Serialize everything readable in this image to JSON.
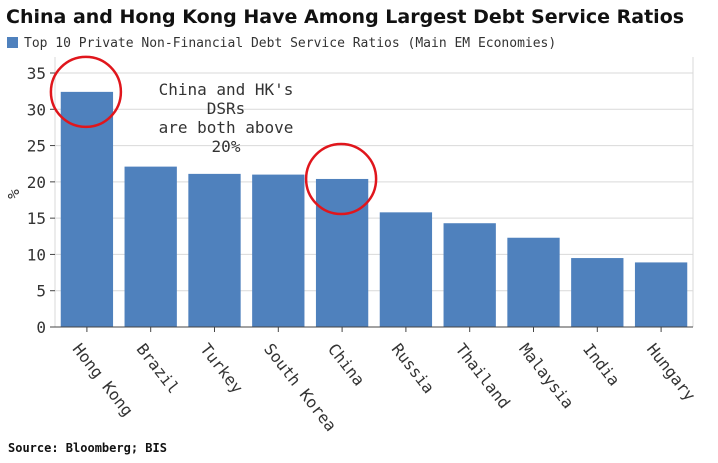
{
  "chart_data": {
    "type": "bar",
    "title": "China and Hong Kong Have Among Largest Debt Service Ratios",
    "legend": "Top 10 Private Non-Financial Debt Service Ratios (Main EM Economies)",
    "ylabel": "%",
    "ylim": [
      0,
      35
    ],
    "yticks": [
      0,
      5,
      10,
      15,
      20,
      25,
      30,
      35
    ],
    "grid": true,
    "categories": [
      "Hong Kong",
      "Brazil",
      "Turkey",
      "South Korea",
      "China",
      "Russia",
      "Thailand",
      "Malaysia",
      "India",
      "Hungary"
    ],
    "series": [
      {
        "name": "Top 10 Private Non-Financial Debt Service Ratios (Main EM Economies)",
        "values": [
          32.4,
          22.1,
          21.1,
          21.0,
          20.4,
          15.8,
          14.3,
          12.3,
          9.5,
          8.9
        ]
      }
    ],
    "annotation": [
      "China and HK's",
      "DSRs",
      "are both above",
      "20%"
    ],
    "highlighted": [
      "Hong Kong",
      "China"
    ],
    "source": "Source: Bloomberg; BIS",
    "colors": {
      "bar": "#4f81bd",
      "highlight": "#e0161c"
    }
  }
}
